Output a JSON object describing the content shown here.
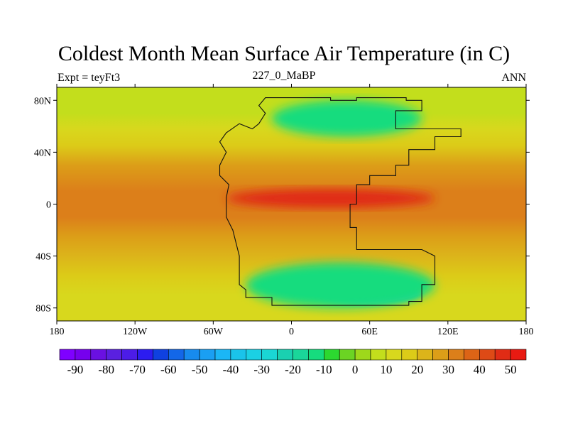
{
  "title": "Coldest Month Mean Surface Air Temperature (in C)",
  "left_label": "Expt = teyFt3",
  "center_label": "227_0_MaBP",
  "right_label": "ANN",
  "map": {
    "projection": "equirectangular",
    "lon_range": [
      -180,
      180
    ],
    "lat_range": [
      -90,
      90
    ],
    "x_ticks": [
      {
        "value": -180,
        "label": "180"
      },
      {
        "value": -120,
        "label": "120W"
      },
      {
        "value": -60,
        "label": "60W"
      },
      {
        "value": 0,
        "label": "0"
      },
      {
        "value": 60,
        "label": "60E"
      },
      {
        "value": 120,
        "label": "120E"
      },
      {
        "value": 180,
        "label": "180"
      }
    ],
    "y_ticks": [
      {
        "value": 80,
        "label": "80N"
      },
      {
        "value": 40,
        "label": "40N"
      },
      {
        "value": 0,
        "label": "0"
      },
      {
        "value": -40,
        "label": "40S"
      },
      {
        "value": -80,
        "label": "80S"
      }
    ],
    "ocean_zonal_profile": [
      {
        "lat": 90,
        "temp": 5
      },
      {
        "lat": 70,
        "temp": 7
      },
      {
        "lat": 58,
        "temp": 10
      },
      {
        "lat": 45,
        "temp": 18
      },
      {
        "lat": 30,
        "temp": 27
      },
      {
        "lat": 10,
        "temp": 31
      },
      {
        "lat": 0,
        "temp": 32
      },
      {
        "lat": -10,
        "temp": 31
      },
      {
        "lat": -25,
        "temp": 27
      },
      {
        "lat": -40,
        "temp": 20
      },
      {
        "lat": -55,
        "temp": 16
      },
      {
        "lat": -70,
        "temp": 13
      },
      {
        "lat": -90,
        "temp": 10
      }
    ],
    "regions": [
      {
        "name": "northern-cold-core",
        "temp": -25,
        "lon": [
          58,
          80
        ],
        "lat": [
          60,
          72
        ]
      },
      {
        "name": "northern-cold-region",
        "temp": -15,
        "lon": [
          -15,
          100
        ],
        "lat": [
          52,
          80
        ]
      },
      {
        "name": "southern-cold-core",
        "temp": -25,
        "lon": [
          20,
          100
        ],
        "lat": [
          -77,
          -60
        ]
      },
      {
        "name": "southern-cold-region",
        "temp": -15,
        "lon": [
          -35,
          110
        ],
        "lat": [
          -80,
          -45
        ]
      },
      {
        "name": "tropical-hot-land",
        "temp": 45,
        "lon": [
          -50,
          110
        ],
        "lat": [
          -3,
          12
        ]
      }
    ],
    "continent_outline_lonlat": [
      [
        -20,
        82
      ],
      [
        30,
        82
      ],
      [
        30,
        80
      ],
      [
        50,
        80
      ],
      [
        50,
        82
      ],
      [
        88,
        82
      ],
      [
        88,
        80
      ],
      [
        100,
        80
      ],
      [
        100,
        72
      ],
      [
        80,
        72
      ],
      [
        80,
        58
      ],
      [
        130,
        58
      ],
      [
        130,
        52
      ],
      [
        110,
        52
      ],
      [
        110,
        42
      ],
      [
        90,
        42
      ],
      [
        90,
        30
      ],
      [
        80,
        30
      ],
      [
        80,
        22
      ],
      [
        60,
        22
      ],
      [
        60,
        15
      ],
      [
        50,
        15
      ],
      [
        50,
        0
      ],
      [
        45,
        0
      ],
      [
        45,
        -18
      ],
      [
        50,
        -18
      ],
      [
        50,
        -35
      ],
      [
        100,
        -35
      ],
      [
        110,
        -40
      ],
      [
        110,
        -62
      ],
      [
        100,
        -62
      ],
      [
        100,
        -75
      ],
      [
        90,
        -75
      ],
      [
        90,
        -78
      ],
      [
        -15,
        -78
      ],
      [
        -15,
        -72
      ],
      [
        -35,
        -72
      ],
      [
        -35,
        -66
      ],
      [
        -40,
        -62
      ],
      [
        -40,
        -40
      ],
      [
        -45,
        -20
      ],
      [
        -50,
        -10
      ],
      [
        -50,
        5
      ],
      [
        -48,
        15
      ],
      [
        -55,
        22
      ],
      [
        -55,
        30
      ],
      [
        -50,
        40
      ],
      [
        -55,
        48
      ],
      [
        -50,
        55
      ],
      [
        -40,
        62
      ],
      [
        -30,
        58
      ],
      [
        -25,
        62
      ],
      [
        -20,
        70
      ],
      [
        -25,
        76
      ],
      [
        -20,
        82
      ]
    ]
  },
  "colorbar": {
    "levels": [
      -95,
      -90,
      -85,
      -80,
      -75,
      -70,
      -65,
      -60,
      -55,
      -50,
      -45,
      -40,
      -35,
      -30,
      -25,
      -20,
      -15,
      -10,
      -5,
      0,
      5,
      10,
      15,
      20,
      25,
      30,
      35,
      40,
      45,
      50
    ],
    "label_values": [
      -90,
      -80,
      -70,
      -60,
      -50,
      -40,
      -30,
      -20,
      -10,
      0,
      10,
      20,
      30,
      40,
      50
    ],
    "labels": [
      "-90",
      "-80",
      "-70",
      "-60",
      "-50",
      "-40",
      "-30",
      "-20",
      "-10",
      "0",
      "10",
      "20",
      "30",
      "40",
      "50"
    ],
    "colors": [
      "#7f00ff",
      "#7600ee",
      "#6a10e2",
      "#5a20e0",
      "#4c1ce8",
      "#2c1cf0",
      "#0f41e0",
      "#1367e8",
      "#178bee",
      "#1a9ff3",
      "#1bb6f6",
      "#1ac3ea",
      "#1bd0e4",
      "#1ad6d4",
      "#1ad0b0",
      "#1ad69a",
      "#16dc7e",
      "#2cd830",
      "#6bd423",
      "#9ed81b",
      "#c3de1c",
      "#d8d81d",
      "#dccb18",
      "#dcb41a",
      "#dc9e18",
      "#dc7f1a",
      "#dc6416",
      "#de4a16",
      "#e02c15",
      "#e81a12"
    ]
  }
}
